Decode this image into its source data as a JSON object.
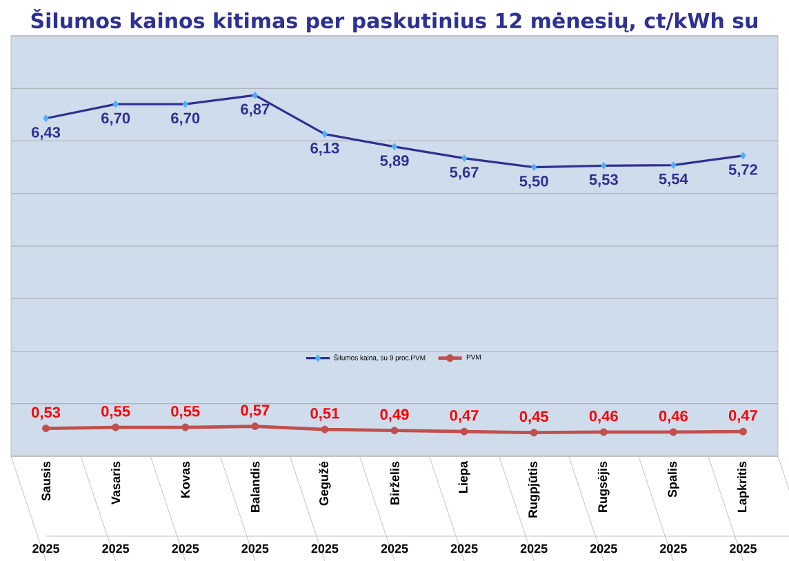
{
  "chart_data": {
    "type": "line",
    "title": "Šilumos kainos kitimas per paskutinius 12 mėnesių, ct/kWh su",
    "categories": [
      "Sausis",
      "Vasaris",
      "Kovas",
      "Balandis",
      "Gegužė",
      "Birželis",
      "Liepa",
      "Rugpjūtis",
      "Rugsėjis",
      "Spalis",
      "Lapkritis"
    ],
    "annotations": [
      "2025",
      "2025",
      "2025",
      "2025",
      "2025",
      "2025",
      "2025",
      "2025",
      "2025",
      "2025",
      "2025"
    ],
    "series": [
      {
        "name": "Šilumos kaina, su 9 proc.PVM",
        "color": "#2e3192",
        "marker": "diamond",
        "values": [
          6.43,
          6.7,
          6.7,
          6.87,
          6.13,
          5.89,
          5.67,
          5.5,
          5.53,
          5.54,
          5.72
        ],
        "value_labels": [
          "6,43",
          "6,70",
          "6,70",
          "6,87",
          "6,13",
          "5,89",
          "5,67",
          "5,50",
          "5,53",
          "5,54",
          "5,72"
        ]
      },
      {
        "name": "PVM",
        "color": "#c0504d",
        "marker": "circle",
        "values": [
          0.53,
          0.55,
          0.55,
          0.57,
          0.51,
          0.49,
          0.47,
          0.45,
          0.46,
          0.46,
          0.47
        ],
        "value_labels": [
          "0,53",
          "0,55",
          "0,55",
          "0,57",
          "0,51",
          "0,49",
          "0,47",
          "0,45",
          "0,46",
          "0,46",
          "0,47"
        ]
      }
    ],
    "ylim": [
      0,
      8
    ],
    "yticks": [
      {
        "value": 0,
        "label": null
      },
      {
        "value": 1,
        "label": null
      },
      {
        "value": 2,
        "label": null
      },
      {
        "value": 3,
        "label": null
      },
      {
        "value": 4,
        "label": null
      },
      {
        "value": 5,
        "label": null
      },
      {
        "value": 6,
        "label": null
      },
      {
        "value": 7,
        "label": null
      },
      {
        "value": 8,
        "label": null
      }
    ],
    "tick_labels": "x",
    "grid": "y",
    "legend": "bottom"
  }
}
